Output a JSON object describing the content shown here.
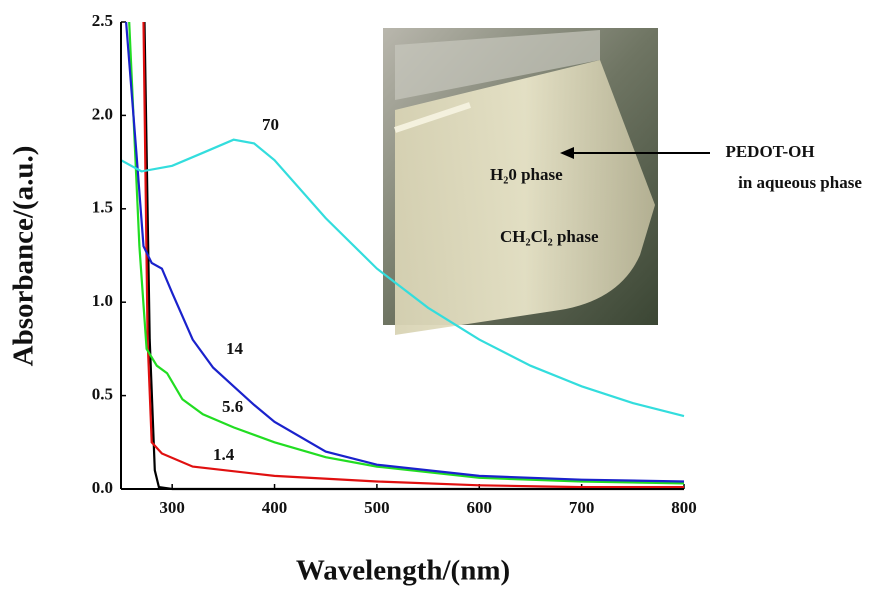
{
  "chart_data": {
    "type": "line",
    "x_label": "Wavelength/(nm)",
    "y_label": "Absorbance/(a.u.)",
    "xlim": [
      250,
      800
    ],
    "ylim": [
      0,
      2.5
    ],
    "xticks": [
      300,
      400,
      500,
      600,
      700,
      800
    ],
    "yticks": [
      {
        "value": 0,
        "label": "0.0"
      },
      0.5,
      {
        "value": 1,
        "label": "1.0"
      },
      1.5,
      {
        "value": 2,
        "label": "2.0"
      },
      2.5
    ],
    "grid": false,
    "series": [
      {
        "color": "#000000",
        "x": [
          273,
          278,
          283,
          287,
          300,
          800
        ],
        "values": [
          2.5,
          0.8,
          0.1,
          0.01,
          0,
          0
        ]
      },
      {
        "name": "1.4",
        "color": "#e01010",
        "x": [
          272,
          276,
          280,
          290,
          320,
          400,
          500,
          600,
          700,
          800
        ],
        "values": [
          2.5,
          0.8,
          0.25,
          0.19,
          0.12,
          0.07,
          0.04,
          0.02,
          0.01,
          0.01
        ]
      },
      {
        "name": "5.6",
        "color": "#22dd22",
        "x": [
          258,
          268,
          275,
          285,
          295,
          310,
          330,
          360,
          400,
          450,
          500,
          600,
          700,
          800
        ],
        "values": [
          2.5,
          1.3,
          0.75,
          0.66,
          0.62,
          0.48,
          0.4,
          0.33,
          0.25,
          0.17,
          0.12,
          0.06,
          0.04,
          0.03
        ]
      },
      {
        "name": "14",
        "color": "#1a22cc",
        "x": [
          255,
          265,
          272,
          280,
          290,
          300,
          320,
          340,
          360,
          380,
          400,
          450,
          500,
          600,
          700,
          800
        ],
        "values": [
          2.5,
          1.8,
          1.3,
          1.21,
          1.18,
          1.05,
          0.8,
          0.65,
          0.55,
          0.45,
          0.36,
          0.2,
          0.13,
          0.07,
          0.05,
          0.04
        ]
      },
      {
        "name": "70",
        "color": "#33dddd",
        "x": [
          250,
          270,
          300,
          330,
          360,
          380,
          400,
          450,
          500,
          550,
          600,
          650,
          700,
          750,
          800
        ],
        "values": [
          1.76,
          1.7,
          1.73,
          1.8,
          1.87,
          1.85,
          1.76,
          1.45,
          1.18,
          0.97,
          0.8,
          0.66,
          0.55,
          0.46,
          0.39
        ]
      }
    ],
    "annotations": [
      "PEDOT-OH",
      "in aqueous phase",
      "H₂0 phase",
      "CH₂Cl₂ phase"
    ]
  }
}
